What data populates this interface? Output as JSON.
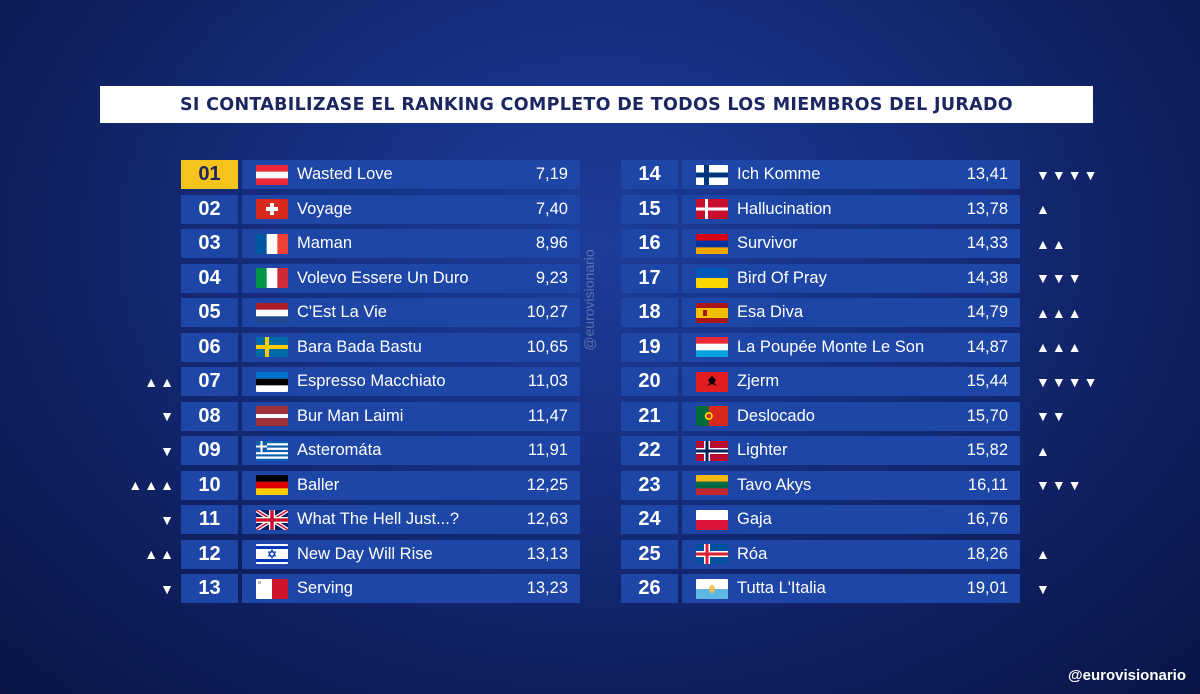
{
  "title": "SI CONTABILIZASE EL RANKING COMPLETO DE TODOS LOS MIEMBROS DEL JURADO",
  "watermark": "@eurovisionario",
  "handle": "@eurovisionario",
  "colors": {
    "rank_bg": "#1d46a6",
    "gold": "#f6c21c",
    "bg_dark": "#0f1f5e"
  },
  "left_rows": [
    {
      "rank": "01",
      "flag": "austria",
      "song": "Wasted Love",
      "score": "7,19",
      "trend": ""
    },
    {
      "rank": "02",
      "flag": "switzerland",
      "song": "Voyage",
      "score": "7,40",
      "trend": ""
    },
    {
      "rank": "03",
      "flag": "france",
      "song": "Maman",
      "score": "8,96",
      "trend": ""
    },
    {
      "rank": "04",
      "flag": "italy",
      "song": "Volevo Essere Un Duro",
      "score": "9,23",
      "trend": ""
    },
    {
      "rank": "05",
      "flag": "netherlands",
      "song": "C'Est La Vie",
      "score": "10,27",
      "trend": ""
    },
    {
      "rank": "06",
      "flag": "sweden",
      "song": "Bara Bada Bastu",
      "score": "10,65",
      "trend": ""
    },
    {
      "rank": "07",
      "flag": "estonia",
      "song": "Espresso Macchiato",
      "score": "11,03",
      "trend": "▲▲"
    },
    {
      "rank": "08",
      "flag": "latvia",
      "song": "Bur Man Laimi",
      "score": "11,47",
      "trend": "▼"
    },
    {
      "rank": "09",
      "flag": "greece",
      "song": "Asteromáta",
      "score": "11,91",
      "trend": "▼"
    },
    {
      "rank": "10",
      "flag": "germany",
      "song": "Baller",
      "score": "12,25",
      "trend": "▲▲▲"
    },
    {
      "rank": "11",
      "flag": "uk",
      "song": "What The Hell Just...?",
      "score": "12,63",
      "trend": "▼"
    },
    {
      "rank": "12",
      "flag": "israel",
      "song": "New Day Will Rise",
      "score": "13,13",
      "trend": "▲▲"
    },
    {
      "rank": "13",
      "flag": "malta",
      "song": "Serving",
      "score": "13,23",
      "trend": "▼"
    }
  ],
  "right_rows": [
    {
      "rank": "14",
      "flag": "finland",
      "song": "Ich Komme",
      "score": "13,41",
      "trend": "▼▼▼▼"
    },
    {
      "rank": "15",
      "flag": "denmark",
      "song": "Hallucination",
      "score": "13,78",
      "trend": "▲"
    },
    {
      "rank": "16",
      "flag": "armenia",
      "song": "Survivor",
      "score": "14,33",
      "trend": "▲▲"
    },
    {
      "rank": "17",
      "flag": "ukraine",
      "song": "Bird Of Pray",
      "score": "14,38",
      "trend": "▼▼▼"
    },
    {
      "rank": "18",
      "flag": "spain",
      "song": "Esa Diva",
      "score": "14,79",
      "trend": "▲▲▲"
    },
    {
      "rank": "19",
      "flag": "luxembourg",
      "song": "La Poupée Monte Le Son",
      "score": "14,87",
      "trend": "▲▲▲"
    },
    {
      "rank": "20",
      "flag": "albania",
      "song": "Zjerm",
      "score": "15,44",
      "trend": "▼▼▼▼"
    },
    {
      "rank": "21",
      "flag": "portugal",
      "song": "Deslocado",
      "score": "15,70",
      "trend": "▼▼"
    },
    {
      "rank": "22",
      "flag": "norway",
      "song": "Lighter",
      "score": "15,82",
      "trend": "▲"
    },
    {
      "rank": "23",
      "flag": "lithuania",
      "song": "Tavo Akys",
      "score": "16,11",
      "trend": "▼▼▼"
    },
    {
      "rank": "24",
      "flag": "poland",
      "song": "Gaja",
      "score": "16,76",
      "trend": ""
    },
    {
      "rank": "25",
      "flag": "iceland",
      "song": "Róa",
      "score": "18,26",
      "trend": "▲"
    },
    {
      "rank": "26",
      "flag": "sanmarino",
      "song": "Tutta L'Italia",
      "score": "19,01",
      "trend": "▼"
    }
  ]
}
